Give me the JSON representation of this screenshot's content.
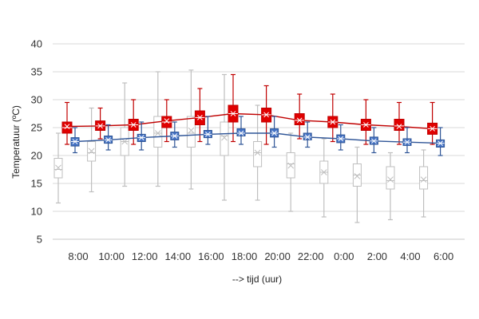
{
  "chart_data": {
    "type": "boxplot",
    "title": "",
    "xlabel": "--> tijd (uur)",
    "ylabel": "Temperatuur (ºC)",
    "ylim": [
      5,
      40
    ],
    "yticks": [
      5,
      10,
      15,
      20,
      25,
      30,
      35,
      40
    ],
    "grid": "horizontal",
    "categories": [
      "8:00",
      "10:00",
      "12:00",
      "14:00",
      "16:00",
      "18:00",
      "20:00",
      "22:00",
      "0:00",
      "2:00",
      "4:00",
      "6:00"
    ],
    "series": [
      {
        "color": "#bfbfbf",
        "boxes": [
          {
            "min": 11.5,
            "q1": 16.0,
            "median": 17.5,
            "q3": 19.5,
            "max": 24.0,
            "mean": 17.8
          },
          {
            "min": 13.5,
            "q1": 19.0,
            "median": 20.5,
            "q3": 22.5,
            "max": 28.5,
            "mean": 20.8
          },
          {
            "min": 14.5,
            "q1": 20.0,
            "median": 22.5,
            "q3": 25.0,
            "max": 33.0,
            "mean": 22.5
          },
          {
            "min": 14.5,
            "q1": 21.5,
            "median": 24.0,
            "q3": 27.0,
            "max": 35.0,
            "mean": 24.0
          },
          {
            "min": 14.0,
            "q1": 21.5,
            "median": 24.0,
            "q3": 27.0,
            "max": 35.3,
            "mean": 24.5
          },
          {
            "min": 12.0,
            "q1": 20.0,
            "median": 23.5,
            "q3": 26.0,
            "max": 34.5,
            "mean": 23.2
          },
          {
            "min": 12.0,
            "q1": 18.0,
            "median": 20.5,
            "q3": 22.5,
            "max": 29.0,
            "mean": 20.5
          },
          {
            "min": 10.0,
            "q1": 16.0,
            "median": 18.5,
            "q3": 20.5,
            "max": 24.0,
            "mean": 18.2
          },
          {
            "min": 9.0,
            "q1": 15.0,
            "median": 17.0,
            "q3": 19.0,
            "max": 23.0,
            "mean": 17.0
          },
          {
            "min": 8.0,
            "q1": 14.5,
            "median": 16.5,
            "q3": 18.5,
            "max": 21.5,
            "mean": 16.3
          },
          {
            "min": 8.5,
            "q1": 14.0,
            "median": 15.5,
            "q3": 18.0,
            "max": 20.5,
            "mean": 15.7
          },
          {
            "min": 9.0,
            "q1": 14.0,
            "median": 15.5,
            "q3": 18.0,
            "max": 21.0,
            "mean": 15.7
          }
        ]
      },
      {
        "color": "#e00000",
        "boxes": [
          {
            "min": 22.0,
            "q1": 24.0,
            "median": 25.0,
            "q3": 26.0,
            "max": 29.5,
            "mean": 25.2
          },
          {
            "min": 23.0,
            "q1": 24.5,
            "median": 25.3,
            "q3": 26.2,
            "max": 28.5,
            "mean": 25.3
          },
          {
            "min": 22.0,
            "q1": 24.5,
            "median": 25.5,
            "q3": 26.5,
            "max": 30.0,
            "mean": 25.5
          },
          {
            "min": 22.5,
            "q1": 25.0,
            "median": 26.0,
            "q3": 27.0,
            "max": 30.0,
            "mean": 26.2
          },
          {
            "min": 22.5,
            "q1": 25.5,
            "median": 26.8,
            "q3": 28.0,
            "max": 32.0,
            "mean": 26.8
          },
          {
            "min": 22.5,
            "q1": 26.0,
            "median": 27.5,
            "q3": 29.0,
            "max": 34.5,
            "mean": 27.5
          },
          {
            "min": 22.0,
            "q1": 26.0,
            "median": 27.3,
            "q3": 28.5,
            "max": 32.5,
            "mean": 27.3
          },
          {
            "min": 23.0,
            "q1": 25.5,
            "median": 26.3,
            "q3": 27.5,
            "max": 31.0,
            "mean": 26.3
          },
          {
            "min": 22.5,
            "q1": 25.0,
            "median": 26.0,
            "q3": 27.0,
            "max": 31.0,
            "mean": 26.0
          },
          {
            "min": 22.0,
            "q1": 24.5,
            "median": 25.5,
            "q3": 26.5,
            "max": 30.0,
            "mean": 25.5
          },
          {
            "min": 22.0,
            "q1": 24.5,
            "median": 25.3,
            "q3": 26.5,
            "max": 29.5,
            "mean": 25.2
          },
          {
            "min": 22.0,
            "q1": 23.8,
            "median": 24.8,
            "q3": 25.8,
            "max": 29.5,
            "mean": 24.8
          }
        ]
      },
      {
        "color": "#4472c4",
        "boxes": [
          {
            "min": 20.5,
            "q1": 21.7,
            "median": 22.5,
            "q3": 23.2,
            "max": 25.0,
            "mean": 22.5
          },
          {
            "min": 21.0,
            "q1": 22.2,
            "median": 22.8,
            "q3": 23.5,
            "max": 25.5,
            "mean": 22.8
          },
          {
            "min": 21.0,
            "q1": 22.5,
            "median": 23.2,
            "q3": 23.8,
            "max": 26.0,
            "mean": 23.2
          },
          {
            "min": 21.5,
            "q1": 22.8,
            "median": 23.5,
            "q3": 24.2,
            "max": 26.0,
            "mean": 23.5
          },
          {
            "min": 22.0,
            "q1": 23.2,
            "median": 23.8,
            "q3": 24.5,
            "max": 27.0,
            "mean": 23.8
          },
          {
            "min": 22.0,
            "q1": 23.5,
            "median": 24.0,
            "q3": 24.8,
            "max": 27.0,
            "mean": 24.0
          },
          {
            "min": 21.5,
            "q1": 23.3,
            "median": 24.0,
            "q3": 24.8,
            "max": 27.0,
            "mean": 24.0
          },
          {
            "min": 21.5,
            "q1": 22.8,
            "median": 23.3,
            "q3": 24.0,
            "max": 26.0,
            "mean": 23.3
          },
          {
            "min": 21.0,
            "q1": 22.3,
            "median": 23.0,
            "q3": 23.7,
            "max": 25.5,
            "mean": 23.0
          },
          {
            "min": 20.5,
            "q1": 22.0,
            "median": 22.6,
            "q3": 23.3,
            "max": 25.0,
            "mean": 22.6
          },
          {
            "min": 20.5,
            "q1": 21.8,
            "median": 22.4,
            "q3": 23.0,
            "max": 25.0,
            "mean": 22.4
          },
          {
            "min": 20.0,
            "q1": 21.5,
            "median": 22.2,
            "q3": 22.8,
            "max": 25.0,
            "mean": 22.2
          }
        ]
      }
    ]
  }
}
